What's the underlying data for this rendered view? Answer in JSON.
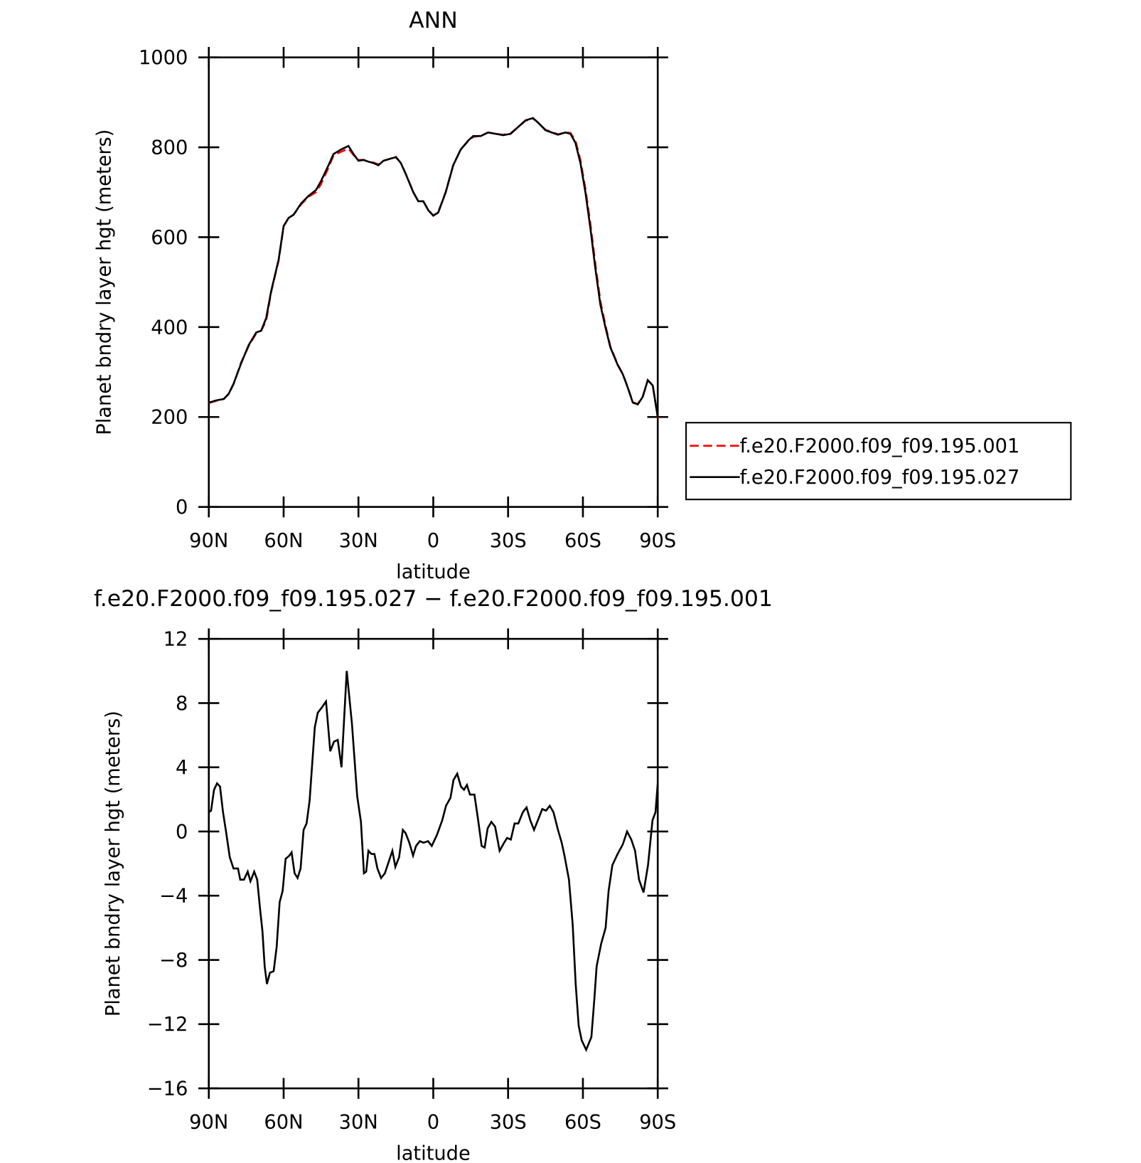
{
  "chart_data": [
    {
      "type": "line",
      "title": "ANN",
      "xlabel": "latitude",
      "ylabel": "Planet bndry layer hgt (meters)",
      "x": [
        90,
        87,
        84,
        82,
        80,
        77,
        74,
        71,
        69,
        67,
        65,
        62,
        60,
        58,
        56,
        53,
        50,
        47,
        45,
        42,
        40,
        37,
        34,
        32,
        30,
        28,
        26,
        24,
        22,
        20,
        17,
        15,
        13,
        11,
        8,
        6,
        4,
        2,
        0,
        -2,
        -5,
        -8,
        -11,
        -14,
        -16,
        -19,
        -22,
        -25,
        -28,
        -31,
        -34,
        -37,
        -40,
        -42,
        -45,
        -48,
        -50,
        -53,
        -55,
        -57,
        -59,
        -61,
        -63,
        -65,
        -67,
        -69,
        -71,
        -74,
        -76,
        -78,
        -80,
        -82,
        -84,
        -86,
        -88,
        -90
      ],
      "series": [
        {
          "name": "f.e20.F2000.f09_f09.195.001",
          "color": "#ff0000",
          "dash": true,
          "values": [
            231,
            236,
            240,
            251,
            274,
            322,
            358,
            386,
            392,
            414,
            478,
            548,
            624,
            643,
            650,
            673,
            690,
            700,
            718,
            755,
            782,
            790,
            797,
            783,
            772,
            772,
            768,
            766,
            762,
            770,
            775,
            779,
            765,
            741,
            700,
            680,
            680,
            661,
            648,
            656,
            701,
            761,
            795,
            814,
            823,
            826,
            833,
            830,
            828,
            831,
            845,
            859,
            864,
            855,
            839,
            833,
            829,
            833,
            832,
            815,
            772,
            708,
            630,
            540,
            458,
            405,
            357,
            316,
            296,
            266,
            233,
            229,
            246,
            282,
            271,
            198
          ]
        },
        {
          "name": "f.e20.F2000.f09_f09.195.027",
          "color": "#000000",
          "dash": false,
          "values": [
            232,
            237,
            240,
            252,
            275,
            320,
            360,
            388,
            392,
            420,
            480,
            550,
            625,
            643,
            650,
            675,
            692,
            705,
            725,
            760,
            785,
            795,
            803,
            785,
            770,
            772,
            768,
            765,
            760,
            770,
            775,
            778,
            765,
            740,
            700,
            680,
            680,
            660,
            648,
            655,
            700,
            760,
            795,
            815,
            825,
            825,
            833,
            830,
            827,
            830,
            845,
            860,
            865,
            855,
            838,
            832,
            828,
            833,
            830,
            810,
            765,
            700,
            620,
            530,
            450,
            400,
            355,
            315,
            295,
            265,
            232,
            228,
            245,
            282,
            270,
            200
          ]
        }
      ],
      "xlim": [
        90,
        -90
      ],
      "xticks": [
        {
          "value": 90,
          "label": "90N"
        },
        {
          "value": 60,
          "label": "60N"
        },
        {
          "value": 30,
          "label": "30N"
        },
        0,
        {
          "value": -30,
          "label": "30S"
        },
        {
          "value": -60,
          "label": "60S"
        },
        {
          "value": -90,
          "label": "90S"
        }
      ],
      "ylim": [
        0,
        1000
      ],
      "yticks": [
        0,
        200,
        400,
        600,
        800,
        1000
      ],
      "legend": "right"
    },
    {
      "type": "line",
      "title": "f.e20.F2000.f09_f09.195.027 − f.e20.F2000.f09_f09.195.001",
      "xlabel": "latitude",
      "ylabel": "Planet bndry layer hgt (meters)",
      "x": [
        90,
        89.1,
        87.9,
        86.7,
        85.5,
        84.3,
        83.1,
        81.6,
        80.1,
        78.3,
        77.4,
        75.9,
        74.4,
        73.3,
        71.8,
        70.6,
        69.4,
        68.5,
        67.6,
        66.7,
        65.5,
        64,
        62.8,
        61.6,
        60.4,
        59.2,
        57.7,
        56.8,
        55.6,
        54.4,
        53.2,
        52,
        50.8,
        49.6,
        47.5,
        46.3,
        44.8,
        43,
        41.3,
        39.8,
        38.3,
        36.8,
        34.7,
        32.6,
        30.5,
        29,
        27.8,
        26.9,
        26,
        24.8,
        23.6,
        22.4,
        20.9,
        19.4,
        17.9,
        16.4,
        15.2,
        13.7,
        12.2,
        11.1,
        9.6,
        8.1,
        6.9,
        5.4,
        3.9,
        2.1,
        0.6,
        -1.5,
        -3.6,
        -5.1,
        -6.9,
        -8.1,
        -9.6,
        -11.1,
        -12.3,
        -13.5,
        -14.7,
        -16.5,
        -18,
        -19.4,
        -20.6,
        -21.8,
        -23.3,
        -24.8,
        -26.6,
        -28.4,
        -29.6,
        -31.1,
        -32.6,
        -34.1,
        -35.9,
        -37.4,
        -38.9,
        -40.4,
        -42.2,
        -43.7,
        -45.2,
        -46.7,
        -48.2,
        -50,
        -51.5,
        -52.6,
        -54.4,
        -55.9,
        -57.1,
        -58.3,
        -59.5,
        -61.3,
        -63.4,
        -64.6,
        -65.5,
        -67.3,
        -69.1,
        -70.3,
        -71.8,
        -73.9,
        -76,
        -77.7,
        -79.4,
        -80.9,
        -82.5,
        -84.3,
        -86.1,
        -87.9,
        -89.1,
        -90
      ],
      "series": [
        {
          "name": "f.e20.F2000.f09_f09.195.027 − f.e20.F2000.f09_f09.195.001",
          "color": "#000000",
          "dash": false,
          "values": [
            1.2,
            1.3,
            2.6,
            3.0,
            2.8,
            1.2,
            0,
            -1.6,
            -2.3,
            -2.3,
            -3,
            -3,
            -2.5,
            -3.1,
            -2.5,
            -3.0,
            -4.9,
            -6.2,
            -8.4,
            -9.5,
            -8.8,
            -8.7,
            -7.2,
            -4.4,
            -3.7,
            -1.7,
            -1.5,
            -1.3,
            -2.6,
            -2.9,
            -2.3,
            0.1,
            0.5,
            1.9,
            6.5,
            7.4,
            7.7,
            8.1,
            5,
            5.6,
            5.7,
            4,
            10,
            6.7,
            2.2,
            0.6,
            -2.6,
            -2.5,
            -1.2,
            -1.4,
            -1.4,
            -2.3,
            -2.9,
            -2.6,
            -1.9,
            -1.2,
            -2.2,
            -1.6,
            0.1,
            -0.1,
            -0.7,
            -1.5,
            -0.9,
            -0.6,
            -0.7,
            -0.6,
            -0.9,
            -0.2,
            0.7,
            1.6,
            2.1,
            3.2,
            3.6,
            2.8,
            2.6,
            2.9,
            2.3,
            2.3,
            0.7,
            -0.9,
            -1,
            0.2,
            0.6,
            0.3,
            -1.2,
            -0.7,
            -0.4,
            -0.5,
            0.5,
            0.5,
            1.2,
            1.5,
            0.7,
            0.1,
            0.8,
            1.4,
            1.3,
            1.6,
            1.2,
            0.1,
            -0.7,
            -1.5,
            -3,
            -5.8,
            -9.5,
            -12.1,
            -13,
            -13.6,
            -12.8,
            -10.4,
            -8.4,
            -7,
            -6,
            -3.7,
            -2.1,
            -1.4,
            -0.8,
            0,
            -0.5,
            -1.2,
            -3,
            -3.8,
            -2.1,
            0.7,
            1.2,
            3
          ]
        }
      ],
      "xlim": [
        90,
        -90
      ],
      "xticks": [
        {
          "value": 90,
          "label": "90N"
        },
        {
          "value": 60,
          "label": "60N"
        },
        {
          "value": 30,
          "label": "30N"
        },
        0,
        {
          "value": -30,
          "label": "30S"
        },
        {
          "value": -60,
          "label": "60S"
        },
        {
          "value": -90,
          "label": "90S"
        }
      ],
      "ylim": [
        -16,
        12
      ],
      "yticks": [
        {
          "value": -16,
          "label": "−16"
        },
        {
          "value": -12,
          "label": "−12"
        },
        {
          "value": -8,
          "label": "−8"
        },
        {
          "value": -4,
          "label": "−4"
        },
        0,
        4,
        8,
        12
      ]
    }
  ]
}
